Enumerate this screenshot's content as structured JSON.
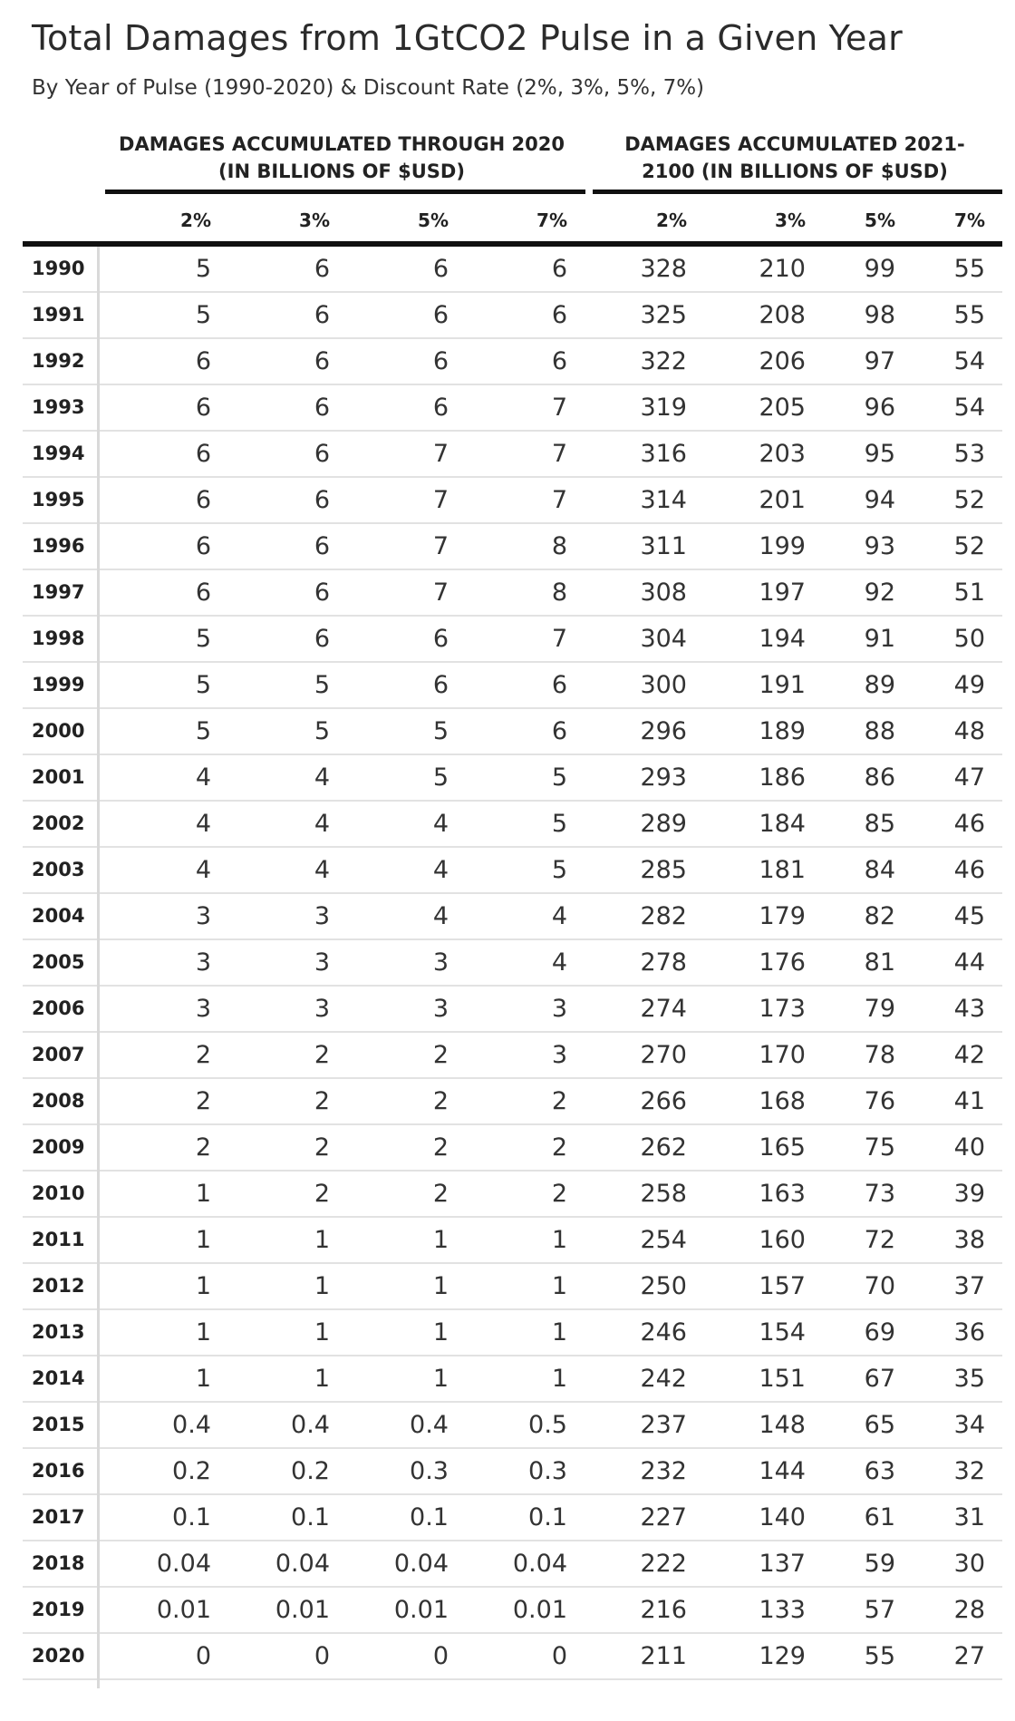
{
  "title": "Total Damages from 1GtCO2 Pulse in a Given Year",
  "subtitle": "By Year of Pulse (1990-2020) & Discount Rate (2%, 3%, 5%, 7%)",
  "chart_data": {
    "type": "table",
    "title": "Total Damages from 1GtCO2 Pulse in a Given Year",
    "subtitle": "By Year of Pulse (1990-2020) & Discount Rate (2%, 3%, 5%, 7%)",
    "column_groups": [
      {
        "label": "DAMAGES ACCUMULATED THROUGH 2020 (IN BILLIONS OF $USD)",
        "line1": "DAMAGES ACCUMULATED THROUGH 2020",
        "line2": "(IN BILLIONS OF $USD)",
        "columns": [
          "2%",
          "3%",
          "5%",
          "7%"
        ]
      },
      {
        "label": "DAMAGES ACCUMULATED 2021-2100 (IN BILLIONS OF $USD)",
        "line1": "DAMAGES ACCUMULATED 2021-",
        "line2": "2100 (IN BILLIONS OF $USD)",
        "columns": [
          "2%",
          "3%",
          "5%",
          "7%"
        ]
      }
    ],
    "rows": [
      {
        "year": "1990",
        "values": [
          "5",
          "6",
          "6",
          "6",
          "328",
          "210",
          "99",
          "55"
        ]
      },
      {
        "year": "1991",
        "values": [
          "5",
          "6",
          "6",
          "6",
          "325",
          "208",
          "98",
          "55"
        ]
      },
      {
        "year": "1992",
        "values": [
          "6",
          "6",
          "6",
          "6",
          "322",
          "206",
          "97",
          "54"
        ]
      },
      {
        "year": "1993",
        "values": [
          "6",
          "6",
          "6",
          "7",
          "319",
          "205",
          "96",
          "54"
        ]
      },
      {
        "year": "1994",
        "values": [
          "6",
          "6",
          "7",
          "7",
          "316",
          "203",
          "95",
          "53"
        ]
      },
      {
        "year": "1995",
        "values": [
          "6",
          "6",
          "7",
          "7",
          "314",
          "201",
          "94",
          "52"
        ]
      },
      {
        "year": "1996",
        "values": [
          "6",
          "6",
          "7",
          "8",
          "311",
          "199",
          "93",
          "52"
        ]
      },
      {
        "year": "1997",
        "values": [
          "6",
          "6",
          "7",
          "8",
          "308",
          "197",
          "92",
          "51"
        ]
      },
      {
        "year": "1998",
        "values": [
          "5",
          "6",
          "6",
          "7",
          "304",
          "194",
          "91",
          "50"
        ]
      },
      {
        "year": "1999",
        "values": [
          "5",
          "5",
          "6",
          "6",
          "300",
          "191",
          "89",
          "49"
        ]
      },
      {
        "year": "2000",
        "values": [
          "5",
          "5",
          "5",
          "6",
          "296",
          "189",
          "88",
          "48"
        ]
      },
      {
        "year": "2001",
        "values": [
          "4",
          "4",
          "5",
          "5",
          "293",
          "186",
          "86",
          "47"
        ]
      },
      {
        "year": "2002",
        "values": [
          "4",
          "4",
          "4",
          "5",
          "289",
          "184",
          "85",
          "46"
        ]
      },
      {
        "year": "2003",
        "values": [
          "4",
          "4",
          "4",
          "5",
          "285",
          "181",
          "84",
          "46"
        ]
      },
      {
        "year": "2004",
        "values": [
          "3",
          "3",
          "4",
          "4",
          "282",
          "179",
          "82",
          "45"
        ]
      },
      {
        "year": "2005",
        "values": [
          "3",
          "3",
          "3",
          "4",
          "278",
          "176",
          "81",
          "44"
        ]
      },
      {
        "year": "2006",
        "values": [
          "3",
          "3",
          "3",
          "3",
          "274",
          "173",
          "79",
          "43"
        ]
      },
      {
        "year": "2007",
        "values": [
          "2",
          "2",
          "2",
          "3",
          "270",
          "170",
          "78",
          "42"
        ]
      },
      {
        "year": "2008",
        "values": [
          "2",
          "2",
          "2",
          "2",
          "266",
          "168",
          "76",
          "41"
        ]
      },
      {
        "year": "2009",
        "values": [
          "2",
          "2",
          "2",
          "2",
          "262",
          "165",
          "75",
          "40"
        ]
      },
      {
        "year": "2010",
        "values": [
          "1",
          "2",
          "2",
          "2",
          "258",
          "163",
          "73",
          "39"
        ]
      },
      {
        "year": "2011",
        "values": [
          "1",
          "1",
          "1",
          "1",
          "254",
          "160",
          "72",
          "38"
        ]
      },
      {
        "year": "2012",
        "values": [
          "1",
          "1",
          "1",
          "1",
          "250",
          "157",
          "70",
          "37"
        ]
      },
      {
        "year": "2013",
        "values": [
          "1",
          "1",
          "1",
          "1",
          "246",
          "154",
          "69",
          "36"
        ]
      },
      {
        "year": "2014",
        "values": [
          "1",
          "1",
          "1",
          "1",
          "242",
          "151",
          "67",
          "35"
        ]
      },
      {
        "year": "2015",
        "values": [
          "0.4",
          "0.4",
          "0.4",
          "0.5",
          "237",
          "148",
          "65",
          "34"
        ]
      },
      {
        "year": "2016",
        "values": [
          "0.2",
          "0.2",
          "0.3",
          "0.3",
          "232",
          "144",
          "63",
          "32"
        ]
      },
      {
        "year": "2017",
        "values": [
          "0.1",
          "0.1",
          "0.1",
          "0.1",
          "227",
          "140",
          "61",
          "31"
        ]
      },
      {
        "year": "2018",
        "values": [
          "0.04",
          "0.04",
          "0.04",
          "0.04",
          "222",
          "137",
          "59",
          "30"
        ]
      },
      {
        "year": "2019",
        "values": [
          "0.01",
          "0.01",
          "0.01",
          "0.01",
          "216",
          "133",
          "57",
          "28"
        ]
      },
      {
        "year": "2020",
        "values": [
          "0",
          "0",
          "0",
          "0",
          "211",
          "129",
          "55",
          "27"
        ]
      }
    ]
  }
}
